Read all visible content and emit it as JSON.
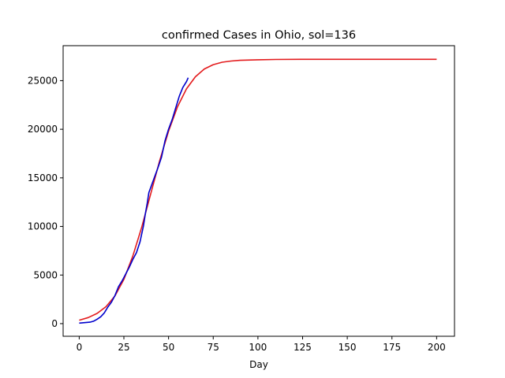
{
  "chart_data": {
    "type": "line",
    "title": "confirmed Cases in Ohio, sol=136",
    "xlabel": "Day",
    "ylabel": "",
    "xlim": [
      -9,
      210
    ],
    "ylim": [
      -1300,
      28600
    ],
    "xticks": [
      0,
      25,
      50,
      75,
      100,
      125,
      150,
      175,
      200
    ],
    "xtick_labels": [
      "0",
      "25",
      "50",
      "75",
      "100",
      "125",
      "150",
      "175",
      "200"
    ],
    "yticks": [
      0,
      5000,
      10000,
      15000,
      20000,
      25000
    ],
    "ytick_labels": [
      "0",
      "5000",
      "10000",
      "15000",
      "20000",
      "25000"
    ],
    "grid": false,
    "legend": "none",
    "series": [
      {
        "color": "#e31a1c",
        "x": [
          0,
          5,
          10,
          15,
          20,
          25,
          30,
          35,
          40,
          45,
          50,
          55,
          60,
          65,
          70,
          75,
          80,
          85,
          90,
          100,
          110,
          125,
          150,
          175,
          200
        ],
        "y": [
          350,
          620,
          1050,
          1750,
          2850,
          4550,
          6950,
          9950,
          13350,
          16750,
          19800,
          22300,
          24150,
          25400,
          26200,
          26650,
          26900,
          27020,
          27090,
          27150,
          27180,
          27200,
          27200,
          27200,
          27200
        ]
      },
      {
        "color": "#0000cc",
        "x": [
          0,
          3,
          6,
          8,
          10,
          12,
          14,
          16,
          18,
          20,
          22,
          24,
          26,
          28,
          30,
          32,
          34,
          36,
          37,
          38,
          39,
          40,
          42,
          44,
          46,
          48,
          50,
          52,
          54,
          56,
          58,
          60,
          61
        ],
        "y": [
          50,
          100,
          150,
          250,
          450,
          700,
          1100,
          1700,
          2200,
          2900,
          3800,
          4400,
          5100,
          5800,
          6600,
          7300,
          8400,
          10100,
          11300,
          12300,
          13500,
          14000,
          15000,
          16000,
          17100,
          18800,
          20000,
          21000,
          22200,
          23400,
          24300,
          24900,
          25300
        ]
      }
    ]
  }
}
